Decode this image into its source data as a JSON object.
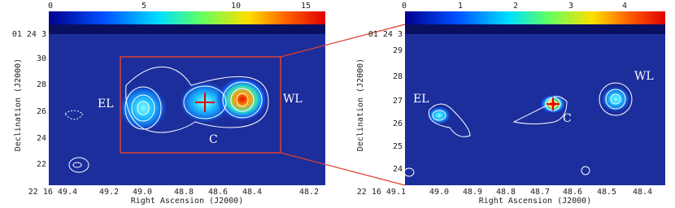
{
  "panels": [
    {
      "colorbar_ticks": [
        "0",
        "5",
        "10",
        "15"
      ],
      "y_ticks": [
        "01 24 3",
        "30",
        "28",
        "26",
        "24",
        "22"
      ],
      "x_ticks": [
        "22 16 49.4",
        "49.2",
        "49.0",
        "48.8",
        "48.6",
        "48.4",
        "48.2"
      ],
      "x_label": "Right Ascension (J2000)",
      "y_label": "Declination (J2000)",
      "labels": [
        "EL",
        "C",
        "WL"
      ]
    },
    {
      "colorbar_ticks": [
        "0",
        "1",
        "2",
        "3",
        "4"
      ],
      "y_ticks": [
        "01 24 3",
        "29",
        "28",
        "27",
        "26",
        "25",
        "24"
      ],
      "x_ticks": [
        "22 16 49.1",
        "49.0",
        "48.9",
        "48.8",
        "48.7",
        "48.6",
        "48.5",
        "48.4"
      ],
      "x_label": "Right Ascension (J2000)",
      "y_label": "Declination (J2000)",
      "labels": [
        "EL",
        "C",
        "WL"
      ]
    }
  ]
}
